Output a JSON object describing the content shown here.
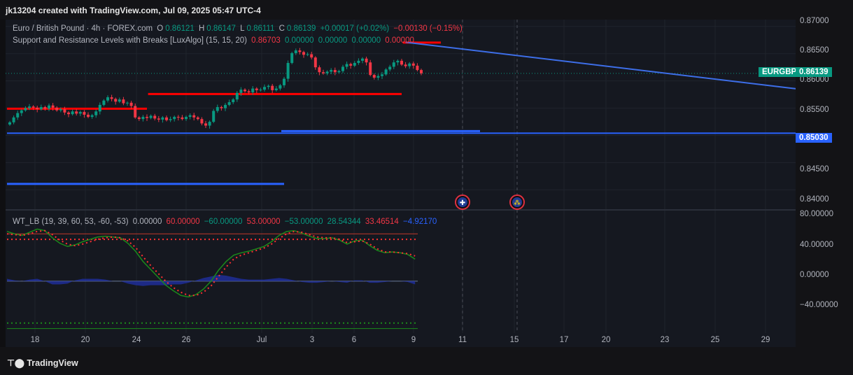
{
  "header": {
    "creator": "jk13204 created with TradingView.com, Jul 09, 2025 05:47 UTC-4"
  },
  "legend": {
    "symbol": "Euro / British Pound · 4h · FOREX.com",
    "o_label": "O",
    "o": "0.86121",
    "h_label": "H",
    "h": "0.86147",
    "l_label": "L",
    "l": "0.86111",
    "c_label": "C",
    "c": "0.86139",
    "change": "+0.00017 (+0.02%)",
    "change2": "−0.00130 (−0.15%)",
    "indicator1_name": "Support and Resistance Levels with Breaks [LuxAlgo] (15, 15, 20)",
    "indicator1_values": [
      "0.86703",
      "0.00000",
      "0.00000",
      "0.00000",
      "0.00000"
    ],
    "indicator2_name": "WT_LB (19, 39, 60, 53, -60, -53)",
    "indicator2_values": [
      "0.00000",
      "60.00000",
      "−60.00000",
      "53.00000",
      "−53.00000",
      "28.54344",
      "33.46514",
      "−4.92170"
    ]
  },
  "price_axis": {
    "ticks": [
      "0.87000",
      "0.86500",
      "0.86000",
      "0.85500",
      "0.84500",
      "0.84000"
    ],
    "symbol_badge": "EURGBP",
    "last_price": "0.86139",
    "level_badge": "0.85030"
  },
  "osc_axis": {
    "ticks": [
      "80.00000",
      "40.00000",
      "0.00000",
      "−40.00000"
    ]
  },
  "time_axis": {
    "ticks": [
      "18",
      "20",
      "24",
      "26",
      "Jul",
      "3",
      "6",
      "9",
      "11",
      "15",
      "17",
      "20",
      "23",
      "25",
      "29"
    ]
  },
  "footer": {
    "brand": "TradingView"
  },
  "colors": {
    "up": "#089981",
    "down": "#f23645",
    "resistance": "#ff0000",
    "support": "#2962ff",
    "trendline": "#3d6ee8",
    "wt1": "#1b8a1b",
    "wt2": "#ff3030",
    "histogram": "#1f2fa0"
  },
  "chart_data": [
    {
      "type": "candlestick",
      "symbol": "EURGBP",
      "timeframe": "4h",
      "ylim": [
        0.838,
        0.871
      ],
      "x_ticks": [
        "18",
        "20",
        "24",
        "26",
        "Jul",
        "3",
        "6",
        "9",
        "11",
        "15",
        "17",
        "20",
        "23",
        "25",
        "29"
      ],
      "closes": [
        0.8524,
        0.8533,
        0.8541,
        0.8546,
        0.855,
        0.8553,
        0.8551,
        0.8548,
        0.8552,
        0.8549,
        0.8555,
        0.8551,
        0.8546,
        0.8548,
        0.8542,
        0.8539,
        0.8544,
        0.854,
        0.8543,
        0.8538,
        0.8534,
        0.8537,
        0.8544,
        0.8556,
        0.8564,
        0.857,
        0.8567,
        0.8562,
        0.8566,
        0.8559,
        0.856,
        0.8554,
        0.8533,
        0.853,
        0.8534,
        0.8532,
        0.8536,
        0.8531,
        0.8529,
        0.8533,
        0.8528,
        0.853,
        0.8534,
        0.8533,
        0.853,
        0.8534,
        0.8537,
        0.8533,
        0.853,
        0.8522,
        0.8518,
        0.8525,
        0.8545,
        0.8552,
        0.855,
        0.8556,
        0.8561,
        0.8566,
        0.8578,
        0.8584,
        0.8581,
        0.8579,
        0.8586,
        0.8583,
        0.8584,
        0.8589,
        0.8591,
        0.8583,
        0.8586,
        0.8592,
        0.8604,
        0.8633,
        0.8651,
        0.8656,
        0.8653,
        0.8648,
        0.8649,
        0.8643,
        0.8625,
        0.8616,
        0.8614,
        0.8617,
        0.862,
        0.8616,
        0.8618,
        0.8626,
        0.8631,
        0.8628,
        0.8633,
        0.8637,
        0.8641,
        0.8634,
        0.8611,
        0.8606,
        0.8609,
        0.8612,
        0.8621,
        0.8626,
        0.8634,
        0.8637,
        0.863,
        0.8627,
        0.8632,
        0.8628,
        0.862,
        0.8614
      ],
      "resistance_levels": [
        {
          "value": 0.8549,
          "from": 0,
          "to": 35
        },
        {
          "value": 0.8576,
          "from": 36,
          "to": 100
        },
        {
          "value": 0.86703,
          "from": 101,
          "to": 110
        }
      ],
      "support_levels": [
        {
          "value": 0.8504,
          "from": 0,
          "to": 220
        },
        {
          "value": 0.8411,
          "from": 0,
          "to": 70
        },
        {
          "value": 0.8508,
          "from": 70,
          "to": 120
        }
      ],
      "trendline": {
        "from": [
          0.8671,
          101
        ],
        "to": [
          0.8533,
          262
        ]
      },
      "last_price": 0.86139,
      "events": [
        "GB",
        "EU"
      ]
    },
    {
      "type": "line",
      "name": "WT_LB",
      "ylim": [
        -55,
        85
      ],
      "levels": [
        60,
        53,
        -60,
        -53,
        0
      ],
      "series": [
        {
          "name": "wt1",
          "values": [
            63,
            60,
            58,
            62,
            66,
            64,
            55,
            48,
            44,
            46,
            50,
            53,
            56,
            57,
            56,
            55,
            48,
            38,
            25,
            15,
            5,
            -5,
            -12,
            -18,
            -20,
            -17,
            -10,
            0,
            14,
            25,
            33,
            36,
            38,
            41,
            44,
            50,
            58,
            63,
            64,
            61,
            57,
            54,
            54,
            55,
            52,
            47,
            51,
            52,
            45,
            39,
            36,
            37,
            36,
            34,
            28
          ]
        },
        {
          "name": "wt2",
          "values": [
            60,
            59,
            58,
            60,
            63,
            64,
            59,
            52,
            47,
            45,
            47,
            50,
            53,
            55,
            56,
            55,
            51,
            43,
            31,
            20,
            10,
            0,
            -8,
            -14,
            -18,
            -18,
            -14,
            -6,
            6,
            18,
            28,
            33,
            36,
            39,
            42,
            47,
            54,
            60,
            63,
            62,
            59,
            56,
            55,
            55,
            53,
            49,
            50,
            51,
            47,
            41,
            37,
            37,
            36,
            35,
            32
          ]
        },
        {
          "name": "hist",
          "values": [
            3,
            1,
            0,
            2,
            3,
            0,
            -4,
            -4,
            -3,
            1,
            3,
            3,
            3,
            2,
            0,
            0,
            -3,
            -5,
            -6,
            -5,
            -5,
            -5,
            -4,
            -4,
            -2,
            1,
            4,
            6,
            8,
            7,
            5,
            3,
            2,
            2,
            2,
            3,
            4,
            3,
            1,
            -1,
            -2,
            -2,
            -1,
            0,
            -1,
            -2,
            1,
            1,
            -2,
            -2,
            -1,
            0,
            0,
            -1,
            -4
          ]
        }
      ]
    }
  ]
}
